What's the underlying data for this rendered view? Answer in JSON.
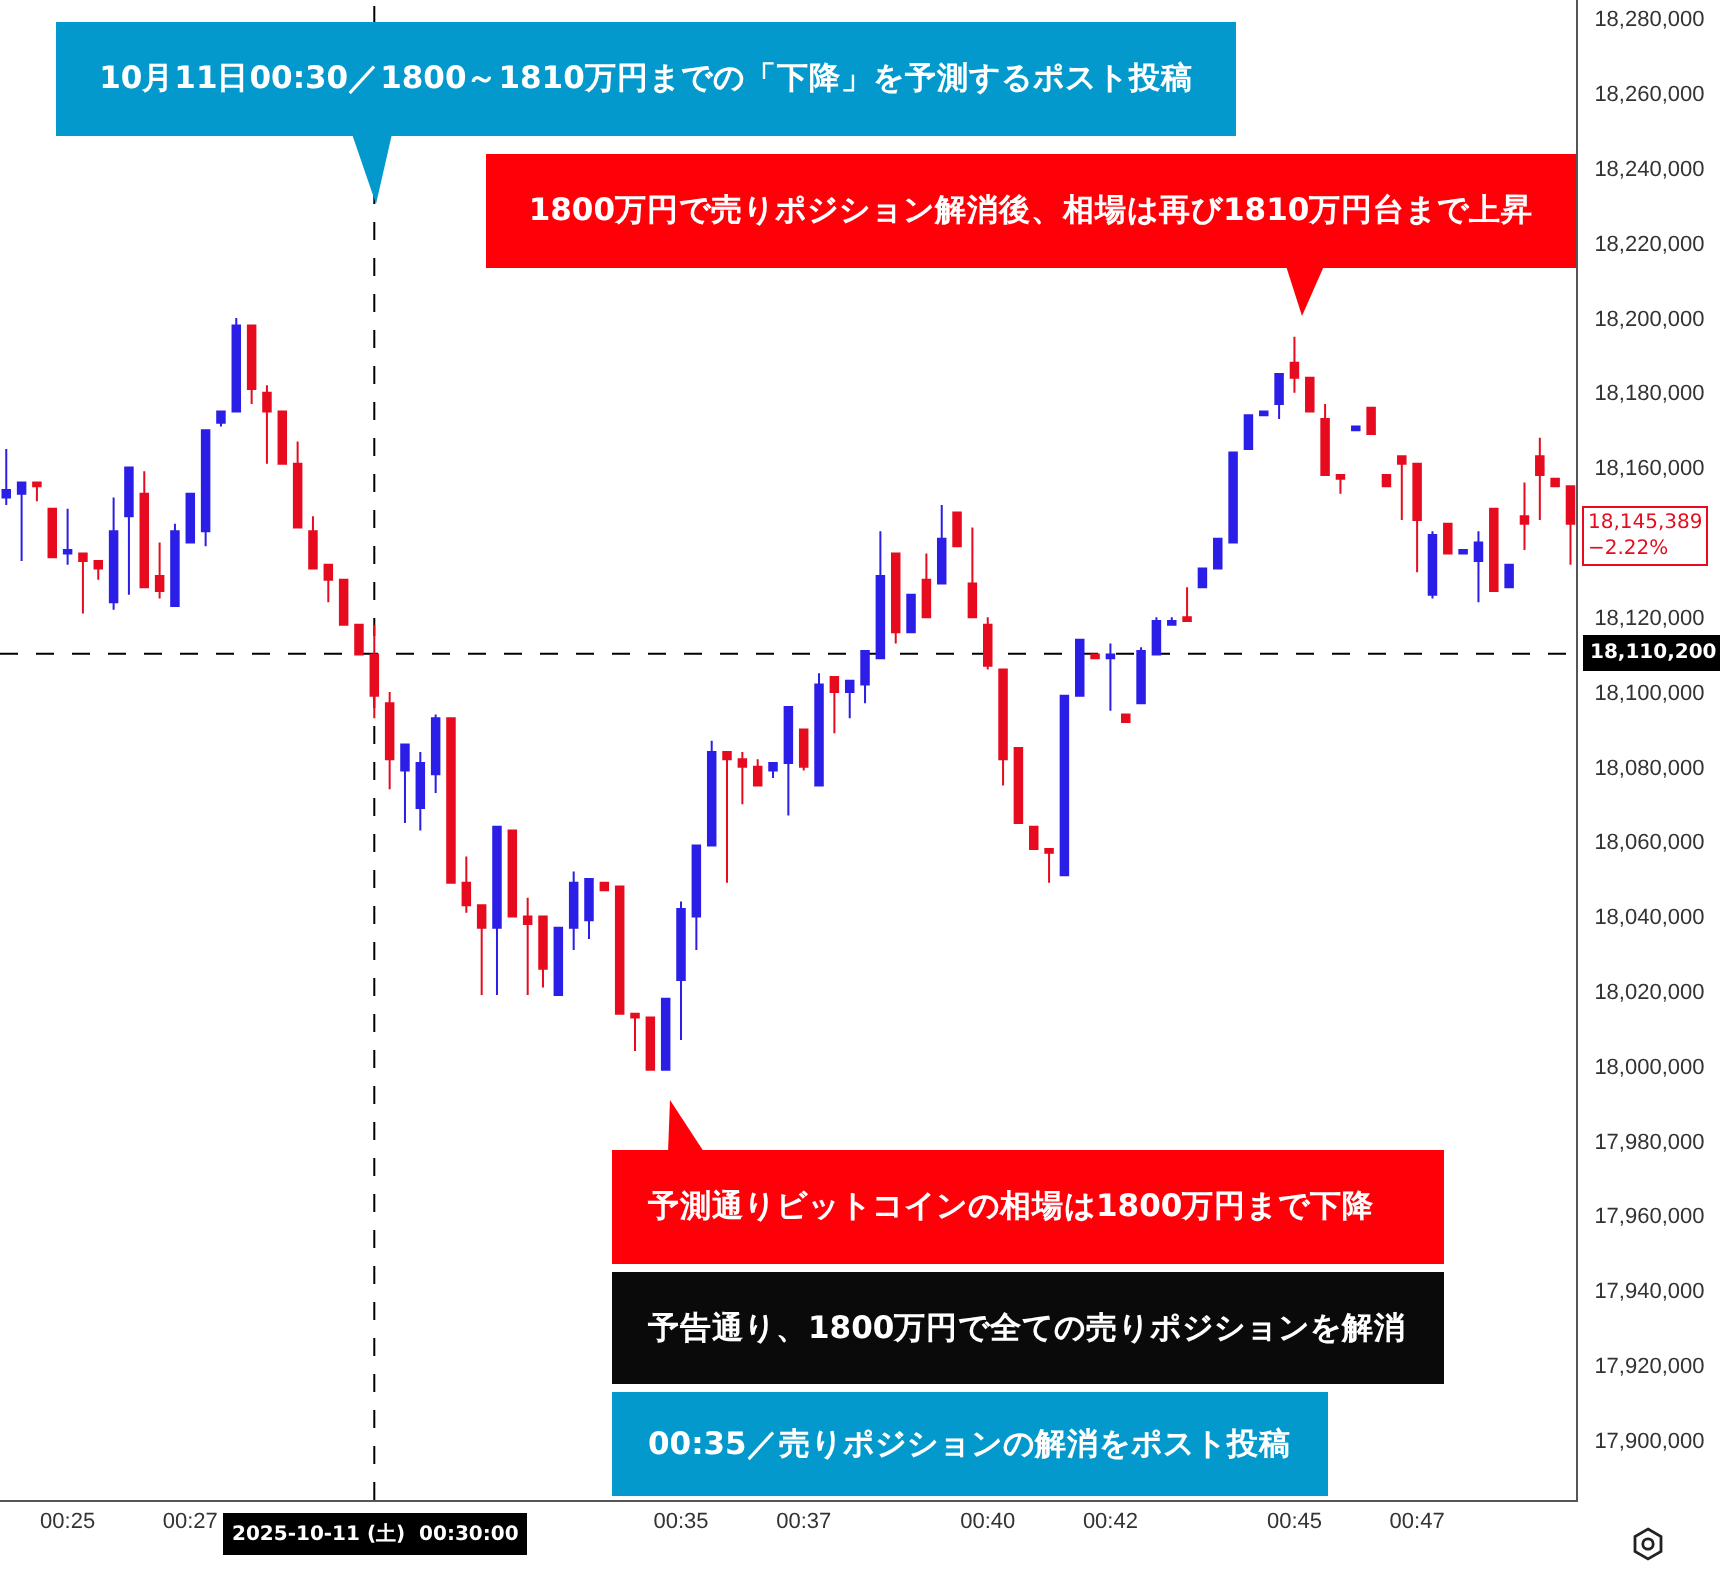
{
  "chart_data": {
    "type": "candlestick",
    "x": [
      0.4,
      0.40417,
      0.40833,
      0.4125,
      0.41667,
      0.42083,
      0.425,
      0.42917,
      0.43333,
      0.4375,
      0.44167,
      0.44583,
      0.45,
      0.45417,
      0.45833,
      0.4625,
      0.46667,
      0.47083,
      0.475,
      0.47917,
      0.48333,
      0.4875,
      0.49167,
      0.49583,
      0.5,
      0.50417,
      0.50833,
      0.5125,
      0.51667,
      0.52083,
      0.525,
      0.52917,
      0.53333,
      0.5375,
      0.54167,
      0.54583,
      0.55,
      0.55417,
      0.55833,
      0.5625,
      0.56667,
      0.57083,
      0.575,
      0.57917,
      0.58333,
      0.5875,
      0.59167,
      0.59583,
      0.6,
      0.60417,
      0.60833,
      0.6125,
      0.61667,
      0.62083,
      0.625,
      0.62917,
      0.63333,
      0.6375,
      0.64167,
      0.64583,
      0.65,
      0.65417,
      0.65833,
      0.6625,
      0.66667,
      0.67083,
      0.675,
      0.67917,
      0.68333,
      0.6875,
      0.69167,
      0.69583,
      0.7,
      0.70417,
      0.70833,
      0.7125,
      0.71667,
      0.72083,
      0.725,
      0.72917,
      0.73333,
      0.7375,
      0.74167,
      0.74583,
      0.75,
      0.75417,
      0.75833,
      0.7625,
      0.76667,
      0.77083,
      0.775,
      0.77917,
      0.78333,
      0.7875,
      0.79167,
      0.79583,
      0.8,
      0.80417,
      0.80833,
      0.8125,
      0.81667,
      0.82083,
      0.825
    ],
    "ohlc": [
      [
        18152000,
        18165000,
        18150000,
        18154000
      ],
      [
        18153000,
        18156000,
        18135000,
        18156000
      ],
      [
        18156000,
        18156000,
        18151000,
        18155000
      ],
      [
        18149000,
        18149000,
        18136000,
        18136000
      ],
      [
        18137000,
        18149000,
        18134000,
        18138000
      ],
      [
        18137000,
        18137000,
        18121000,
        18135000
      ],
      [
        18135000,
        18135000,
        18130000,
        18133000
      ],
      [
        18124000,
        18152000,
        18122000,
        18143000
      ],
      [
        18147000,
        18160000,
        18126000,
        18160000
      ],
      [
        18153000,
        18159000,
        18128000,
        18128000
      ],
      [
        18131000,
        18140000,
        18125000,
        18127000
      ],
      [
        18123000,
        18145000,
        18123000,
        18143000
      ],
      [
        18140000,
        18153000,
        18140000,
        18153000
      ],
      [
        18143000,
        18170000,
        18139000,
        18170000
      ],
      [
        18172000,
        18175000,
        18171000,
        18175000
      ],
      [
        18175000,
        18200000,
        18175000,
        18198000
      ],
      [
        18198000,
        18198000,
        18177000,
        18181000
      ],
      [
        18180000,
        18182000,
        18161000,
        18175000
      ],
      [
        18175000,
        18175000,
        18161000,
        18161000
      ],
      [
        18161000,
        18167000,
        18144000,
        18144000
      ],
      [
        18143000,
        18147000,
        18133000,
        18133000
      ],
      [
        18134000,
        18134000,
        18124000,
        18130000
      ],
      [
        18130000,
        18130000,
        18118000,
        18118000
      ],
      [
        18118000,
        18118000,
        18110000,
        18110000
      ],
      [
        18110000,
        18118000,
        18093000,
        18099000
      ],
      [
        18097000,
        18100000,
        18074000,
        18082000
      ],
      [
        18079000,
        18086000,
        18065000,
        18086000
      ],
      [
        18069000,
        18084000,
        18063000,
        18081000
      ],
      [
        18078000,
        18094000,
        18073000,
        18093000
      ],
      [
        18093000,
        18093000,
        18049000,
        18049000
      ],
      [
        18049000,
        18056000,
        18041000,
        18043000
      ],
      [
        18043000,
        18043000,
        18019000,
        18037000
      ],
      [
        18037000,
        18064000,
        18019000,
        18064000
      ],
      [
        18063000,
        18063000,
        18040000,
        18040000
      ],
      [
        18040000,
        18045000,
        18019000,
        18038000
      ],
      [
        18040000,
        18040000,
        18021000,
        18026000
      ],
      [
        18019000,
        18037000,
        18019000,
        18037000
      ],
      [
        18037000,
        18052000,
        18031000,
        18049000
      ],
      [
        18039000,
        18050000,
        18034000,
        18050000
      ],
      [
        18049000,
        18049000,
        18047000,
        18047000
      ],
      [
        18048000,
        18048000,
        18014000,
        18014000
      ],
      [
        18014000,
        18014000,
        18004000,
        18013000
      ],
      [
        18013000,
        18013000,
        17999000,
        17999000
      ],
      [
        17999000,
        18018000,
        17999000,
        18018000
      ],
      [
        18023000,
        18044000,
        18007000,
        18042000
      ],
      [
        18040000,
        18059000,
        18031000,
        18059000
      ],
      [
        18059000,
        18087000,
        18059000,
        18084000
      ],
      [
        18084000,
        18084000,
        18049000,
        18082000
      ],
      [
        18082000,
        18084000,
        18070000,
        18080000
      ],
      [
        18080000,
        18082000,
        18075000,
        18075000
      ],
      [
        18079000,
        18081000,
        18077000,
        18081000
      ],
      [
        18081000,
        18096000,
        18067000,
        18096000
      ],
      [
        18090000,
        18090000,
        18079000,
        18080000
      ],
      [
        18075000,
        18105000,
        18075000,
        18102000
      ],
      [
        18104000,
        18104000,
        18089000,
        18100000
      ],
      [
        18100000,
        18103000,
        18093000,
        18103000
      ],
      [
        18102000,
        18111000,
        18097000,
        18111000
      ],
      [
        18109000,
        18143000,
        18109000,
        18131000
      ],
      [
        18137000,
        18137000,
        18113000,
        18116000
      ],
      [
        18116000,
        18126000,
        18116000,
        18126000
      ],
      [
        18130000,
        18137000,
        18120000,
        18120000
      ],
      [
        18129000,
        18150000,
        18129000,
        18141000
      ],
      [
        18148000,
        18148000,
        18139000,
        18139000
      ],
      [
        18129000,
        18144000,
        18120000,
        18120000
      ],
      [
        18118000,
        18120000,
        18106000,
        18107000
      ],
      [
        18106000,
        18106000,
        18075000,
        18082000
      ],
      [
        18085000,
        18085000,
        18065000,
        18065000
      ],
      [
        18064000,
        18064000,
        18058000,
        18058000
      ],
      [
        18058000,
        18058000,
        18049000,
        18057000
      ],
      [
        18051000,
        18099000,
        18051000,
        18099000
      ],
      [
        18099000,
        18114000,
        18099000,
        18114000
      ],
      [
        18110000,
        18110000,
        18109000,
        18109000
      ],
      [
        18109000,
        18113000,
        18095000,
        18110000
      ],
      [
        18094000,
        18094000,
        18092000,
        18092000
      ],
      [
        18097000,
        18112000,
        18097000,
        18111000
      ],
      [
        18110000,
        18120000,
        18110000,
        18119000
      ],
      [
        18118000,
        18120000,
        18118000,
        18119000
      ],
      [
        18120000,
        18128000,
        18119000,
        18119000
      ],
      [
        18128000,
        18133000,
        18128000,
        18133000
      ],
      [
        18133000,
        18141000,
        18133000,
        18141000
      ],
      [
        18140000,
        18164000,
        18140000,
        18164000
      ],
      [
        18165000,
        18174000,
        18165000,
        18174000
      ],
      [
        18174000,
        18175000,
        18174000,
        18175000
      ],
      [
        18177000,
        18185000,
        18173000,
        18185000
      ],
      [
        18188000,
        18195000,
        18180000,
        18184000
      ],
      [
        18184000,
        18184000,
        18175000,
        18175000
      ],
      [
        18173000,
        18177000,
        18158000,
        18158000
      ],
      [
        18158000,
        18158000,
        18153000,
        18157000
      ],
      [
        18170000,
        18171000,
        18170000,
        18171000
      ],
      [
        18176000,
        18176000,
        18169000,
        18169000
      ],
      [
        18158000,
        18158000,
        18155000,
        18155000
      ],
      [
        18163000,
        18163000,
        18146000,
        18161000
      ],
      [
        18161000,
        18161000,
        18132000,
        18146000
      ],
      [
        18126000,
        18143000,
        18125000,
        18142000
      ],
      [
        18145000,
        18145000,
        18137000,
        18137000
      ],
      [
        18137000,
        18138000,
        18137000,
        18138000
      ],
      [
        18135000,
        18143000,
        18124000,
        18140000
      ],
      [
        18149000,
        18149000,
        18127000,
        18127000
      ],
      [
        18128000,
        18134000,
        18128000,
        18134000
      ],
      [
        18147000,
        18156000,
        18138000,
        18145000
      ],
      [
        18163000,
        18168000,
        18146000,
        18158000
      ],
      [
        18157000,
        18157000,
        18155000,
        18155000
      ],
      [
        18155000,
        18155000,
        18134000,
        18145000
      ]
    ],
    "colors": [
      "#2b1ee6",
      "#2b1ee6",
      "#e60b1e",
      "#e60b1e",
      "#2b1ee6",
      "#e60b1e",
      "#e60b1e",
      "#2b1ee6",
      "#2b1ee6",
      "#e60b1e",
      "#e60b1e",
      "#2b1ee6",
      "#2b1ee6",
      "#2b1ee6",
      "#2b1ee6",
      "#2b1ee6",
      "#e60b1e",
      "#e60b1e",
      "#e60b1e",
      "#e60b1e",
      "#e60b1e",
      "#e60b1e",
      "#e60b1e",
      "#e60b1e",
      "#e60b1e",
      "#e60b1e",
      "#2b1ee6",
      "#2b1ee6",
      "#2b1ee6",
      "#e60b1e",
      "#e60b1e",
      "#e60b1e",
      "#2b1ee6",
      "#e60b1e",
      "#e60b1e",
      "#e60b1e",
      "#2b1ee6",
      "#2b1ee6",
      "#2b1ee6",
      "#e60b1e",
      "#e60b1e",
      "#e60b1e",
      "#e60b1e",
      "#2b1ee6",
      "#2b1ee6",
      "#2b1ee6",
      "#2b1ee6",
      "#e60b1e",
      "#e60b1e",
      "#e60b1e",
      "#2b1ee6",
      "#2b1ee6",
      "#e60b1e",
      "#2b1ee6",
      "#e60b1e",
      "#2b1ee6",
      "#2b1ee6",
      "#2b1ee6",
      "#e60b1e",
      "#2b1ee6",
      "#e60b1e",
      "#2b1ee6",
      "#e60b1e",
      "#e60b1e",
      "#e60b1e",
      "#e60b1e",
      "#e60b1e",
      "#e60b1e",
      "#e60b1e",
      "#2b1ee6",
      "#2b1ee6",
      "#e60b1e",
      "#2b1ee6",
      "#e60b1e",
      "#2b1ee6",
      "#2b1ee6",
      "#2b1ee6",
      "#e60b1e",
      "#2b1ee6",
      "#2b1ee6",
      "#2b1ee6",
      "#2b1ee6",
      "#2b1ee6",
      "#2b1ee6",
      "#e60b1e",
      "#e60b1e",
      "#e60b1e",
      "#e60b1e",
      "#2b1ee6",
      "#e60b1e",
      "#e60b1e",
      "#e60b1e",
      "#e60b1e",
      "#2b1ee6",
      "#e60b1e",
      "#2b1ee6",
      "#2b1ee6",
      "#e60b1e",
      "#2b1ee6",
      "#e60b1e",
      "#e60b1e",
      "#e60b1e",
      "#e60b1e"
    ],
    "xlim": [
      0.3983,
      0.8265
    ],
    "xticks": [
      {
        "value": 0.41667,
        "label": "00:25"
      },
      {
        "value": 0.45,
        "label": "00:27"
      },
      {
        "value": 0.58333,
        "label": "00:35"
      },
      {
        "value": 0.61667,
        "label": "00:37"
      },
      {
        "value": 0.66667,
        "label": "00:40"
      },
      {
        "value": 0.7,
        "label": "00:42"
      },
      {
        "value": 0.75,
        "label": "00:45"
      },
      {
        "value": 0.78333,
        "label": "00:47"
      }
    ],
    "ylim": [
      17884000,
      18285000
    ],
    "yticks": [
      {
        "value": 17900000,
        "label": "17,900,000"
      },
      {
        "value": 17920000,
        "label": "17,920,000"
      },
      {
        "value": 17940000,
        "label": "17,940,000"
      },
      {
        "value": 17960000,
        "label": "17,960,000"
      },
      {
        "value": 17980000,
        "label": "17,980,000"
      },
      {
        "value": 18000000,
        "label": "18,000,000"
      },
      {
        "value": 18020000,
        "label": "18,020,000"
      },
      {
        "value": 18040000,
        "label": "18,040,000"
      },
      {
        "value": 18060000,
        "label": "18,060,000"
      },
      {
        "value": 18080000,
        "label": "18,080,000"
      },
      {
        "value": 18100000,
        "label": "18,100,000"
      },
      {
        "value": 18120000,
        "label": "18,120,000"
      },
      {
        "value": 18160000,
        "label": "18,160,000"
      },
      {
        "value": 18180000,
        "label": "18,180,000"
      },
      {
        "value": 18200000,
        "label": "18,200,000"
      },
      {
        "value": 18220000,
        "label": "18,220,000"
      },
      {
        "value": 18240000,
        "label": "18,240,000"
      },
      {
        "value": 18260000,
        "label": "18,260,000"
      },
      {
        "value": 18280000,
        "label": "18,280,000"
      }
    ],
    "ref_lines": [
      {
        "axis": "y",
        "value": 18110200,
        "label": "18,110,200",
        "color": "#000000",
        "line_style": "dashed"
      },
      {
        "axis": "x",
        "value": 0.5,
        "label": "2025-10-11 (土)  00:30:00",
        "color": "#000000",
        "line_style": "dashed"
      }
    ],
    "annotations": [
      "10月11日00:30／1800～1810万円までの「下降」を予測するポスト投稿",
      "1800万円で売りポジション解消後、相場は再び1810万円台まで上昇",
      "予測通りビットコインの相場は1800万円まで下降",
      "予告通り、1800万円で全ての売りポジションを解消",
      "00:35／売りポジションの解消をポスト投稿",
      "18,145,389\n−2.22%"
    ]
  }
}
